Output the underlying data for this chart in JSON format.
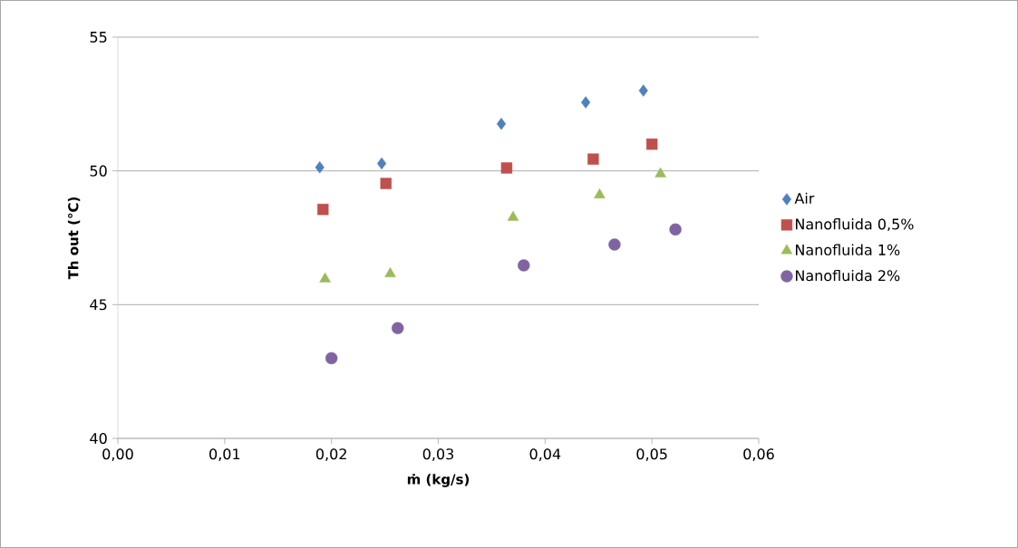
{
  "chart_data": {
    "type": "scatter",
    "xlabel": "ṁ (kg/s)",
    "ylabel": "Th out (°C)",
    "xlim": [
      0,
      0.06
    ],
    "ylim": [
      40,
      55
    ],
    "xticks": [
      {
        "value": 0,
        "label": "0,00"
      },
      {
        "value": 0.01,
        "label": "0,01"
      },
      {
        "value": 0.02,
        "label": "0,02"
      },
      {
        "value": 0.03,
        "label": "0,03"
      },
      {
        "value": 0.04,
        "label": "0,04"
      },
      {
        "value": 0.05,
        "label": "0,05"
      },
      {
        "value": 0.06,
        "label": "0,06"
      }
    ],
    "yticks": [
      40,
      45,
      50,
      55
    ],
    "grid": "y",
    "legend": "right",
    "series": [
      {
        "name": "Air",
        "color": "#4f81bd",
        "marker": "diamond",
        "x": [
          0.0189,
          0.0247,
          0.0359,
          0.0438,
          0.0492
        ],
        "values": [
          50.13,
          50.28,
          51.76,
          52.56,
          53.0
        ]
      },
      {
        "name": "Nanofluida 0,5%",
        "color": "#c0504d",
        "marker": "square",
        "x": [
          0.0192,
          0.0251,
          0.0364,
          0.0445,
          0.05
        ],
        "values": [
          48.56,
          49.53,
          50.11,
          50.44,
          51.0
        ]
      },
      {
        "name": "Nanofluida 1%",
        "color": "#9bbb59",
        "marker": "triangle",
        "x": [
          0.0194,
          0.0255,
          0.037,
          0.0451,
          0.0508
        ],
        "values": [
          45.96,
          46.15,
          48.26,
          49.1,
          49.89
        ]
      },
      {
        "name": "Nanofluida 2%",
        "color": "#8064a2",
        "marker": "circle",
        "x": [
          0.02,
          0.0262,
          0.038,
          0.0465,
          0.0522
        ],
        "values": [
          43.0,
          44.12,
          46.47,
          47.25,
          47.81
        ]
      }
    ]
  }
}
